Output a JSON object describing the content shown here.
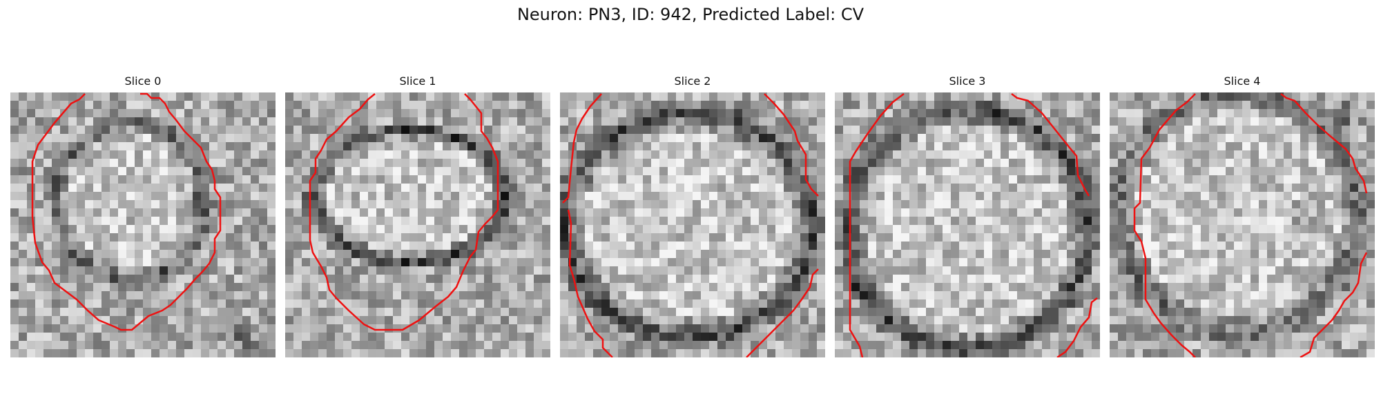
{
  "title": "Neuron: PN3, ID: 942, Predicted Label: CV",
  "panels": [
    {
      "label": "Slice 0"
    },
    {
      "label": "Slice 1"
    },
    {
      "label": "Slice 2"
    },
    {
      "label": "Slice 3"
    },
    {
      "label": "Slice 4"
    }
  ],
  "contour_color": "#ee1111"
}
